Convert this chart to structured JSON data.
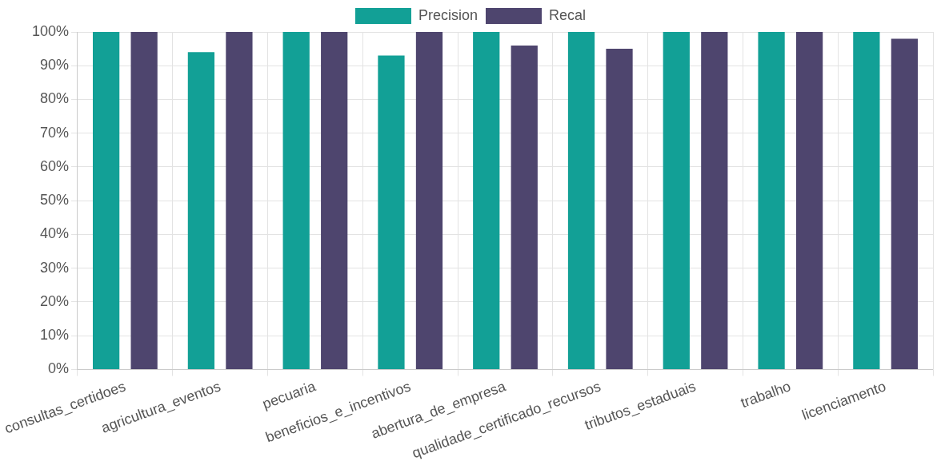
{
  "chart_data": {
    "type": "bar",
    "categories": [
      "consultas_certidoes",
      "agricultura_eventos",
      "pecuaria",
      "beneficios_e_incentivos",
      "abertura_de_empresa",
      "qualidade_certificado_recursos",
      "tributos_estaduais",
      "trabalho",
      "licenciamento"
    ],
    "series": [
      {
        "name": "Precision",
        "color": "#12a096",
        "values": [
          100,
          94,
          100,
          93,
          100,
          100,
          100,
          100,
          100
        ]
      },
      {
        "name": "Recal",
        "color": "#4e456e",
        "values": [
          100,
          100,
          100,
          100,
          96,
          95,
          100,
          100,
          98
        ]
      }
    ],
    "ylim": [
      0,
      100
    ],
    "yticks": [
      {
        "value": 0,
        "label": "0%"
      },
      {
        "value": 10,
        "label": "10%"
      },
      {
        "value": 20,
        "label": "20%"
      },
      {
        "value": 30,
        "label": "30%"
      },
      {
        "value": 40,
        "label": "40%"
      },
      {
        "value": 50,
        "label": "50%"
      },
      {
        "value": 60,
        "label": "60%"
      },
      {
        "value": 70,
        "label": "70%"
      },
      {
        "value": 80,
        "label": "80%"
      },
      {
        "value": 90,
        "label": "90%"
      },
      {
        "value": 100,
        "label": "100%"
      }
    ],
    "grid": true,
    "legend": "top"
  }
}
